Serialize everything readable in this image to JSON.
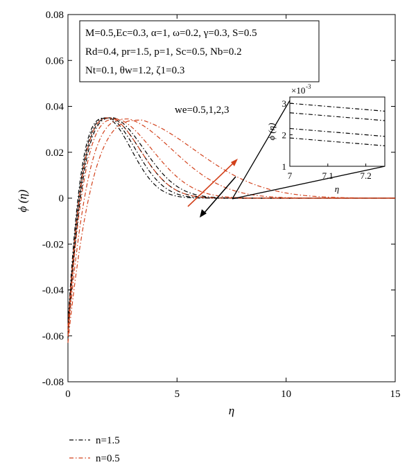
{
  "chart_data": {
    "type": "line",
    "xlabel": "η",
    "ylabel": "ϕ (η)",
    "xlim": [
      0,
      15
    ],
    "ylim": [
      -0.08,
      0.08
    ],
    "x_ticks": [
      "0",
      "5",
      "10",
      "15"
    ],
    "y_ticks": [
      "0.08",
      "0.06",
      "0.04",
      "0.02",
      "0",
      "-0.02",
      "-0.04",
      "-0.06",
      "-0.08"
    ],
    "grid": false,
    "params_box": [
      "M=0.5,Ec=0.3, α=1, ω=0.2, γ=0.3, S=0.5",
      "Rd=0.4, pr=1.5, p=1, Sc=0.5, Nb=0.2",
      "Nt=0.1, θw=1.2, ζ1=0.3"
    ],
    "annotation": "we=0.5,1,2,3",
    "legend": [
      {
        "label": "n=1.5",
        "color": "#000000"
      },
      {
        "label": "n=0.5",
        "color": "#d2401a"
      }
    ],
    "legend_placement": "bottom-left",
    "series": [
      {
        "name": "n=1.5",
        "color": "#000000",
        "we": 0.5,
        "peak_x": 1.8,
        "peak_y": 0.035,
        "start_y": -0.055
      },
      {
        "name": "n=1.5",
        "color": "#000000",
        "we": 1,
        "peak_x": 1.9,
        "peak_y": 0.035,
        "start_y": -0.057
      },
      {
        "name": "n=1.5",
        "color": "#000000",
        "we": 2,
        "peak_x": 2.0,
        "peak_y": 0.035,
        "start_y": -0.059
      },
      {
        "name": "n=1.5",
        "color": "#000000",
        "we": 3,
        "peak_x": 2.1,
        "peak_y": 0.035,
        "start_y": -0.061
      },
      {
        "name": "n=0.5",
        "color": "#d2401a",
        "we": 0.5,
        "peak_x": 2.0,
        "peak_y": 0.035,
        "start_y": -0.056
      },
      {
        "name": "n=0.5",
        "color": "#d2401a",
        "we": 1,
        "peak_x": 2.3,
        "peak_y": 0.0345,
        "start_y": -0.058
      },
      {
        "name": "n=0.5",
        "color": "#d2401a",
        "we": 2,
        "peak_x": 2.8,
        "peak_y": 0.0345,
        "start_y": -0.06
      },
      {
        "name": "n=0.5",
        "color": "#d2401a",
        "we": 3,
        "peak_x": 3.4,
        "peak_y": 0.034,
        "start_y": -0.063
      }
    ],
    "inset": {
      "xlabel": "η",
      "ylabel": "ϕ (η)",
      "exponent": "×10",
      "exponent_power": "-3",
      "xlim": [
        7,
        7.25
      ],
      "ylim": [
        1,
        3.2
      ],
      "x_ticks": [
        "7",
        "7.1",
        "7.2"
      ],
      "y_ticks": [
        "3",
        "2",
        "1"
      ],
      "lines": [
        {
          "y0": 3.0,
          "y1": 2.75
        },
        {
          "y0": 2.7,
          "y1": 2.45
        },
        {
          "y0": 2.2,
          "y1": 1.95
        },
        {
          "y0": 1.9,
          "y1": 1.65
        }
      ]
    }
  }
}
